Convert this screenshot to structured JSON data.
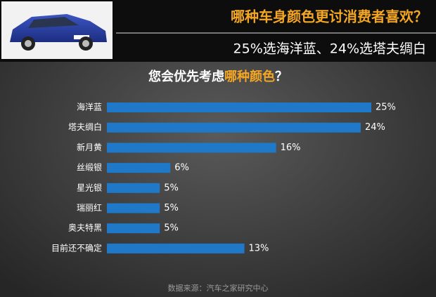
{
  "header": {
    "title": "哪种车身颜色更讨消费者喜欢？",
    "subtitle": "25%选海洋蓝、24%选塔夫绸白"
  },
  "chart_data": {
    "type": "bar",
    "orientation": "horizontal",
    "title_segments": [
      {
        "text": "您会优先考虑",
        "color": "#ffffff"
      },
      {
        "text": "哪种颜色",
        "color": "#f5a623"
      },
      {
        "text": "？",
        "color": "#ffffff"
      }
    ],
    "categories": [
      "海洋蓝",
      "塔夫绸白",
      "新月黄",
      "丝缎银",
      "星光银",
      "瑞丽红",
      "奥夫特黑",
      "目前还不确定"
    ],
    "values": [
      25,
      24,
      16,
      6,
      5,
      5,
      5,
      13
    ],
    "value_labels": [
      "25%",
      "24%",
      "16%",
      "6%",
      "5%",
      "5%",
      "5%",
      "13%"
    ],
    "color": "#1f78c8",
    "source": "数据来源：汽车之家研究中心"
  }
}
